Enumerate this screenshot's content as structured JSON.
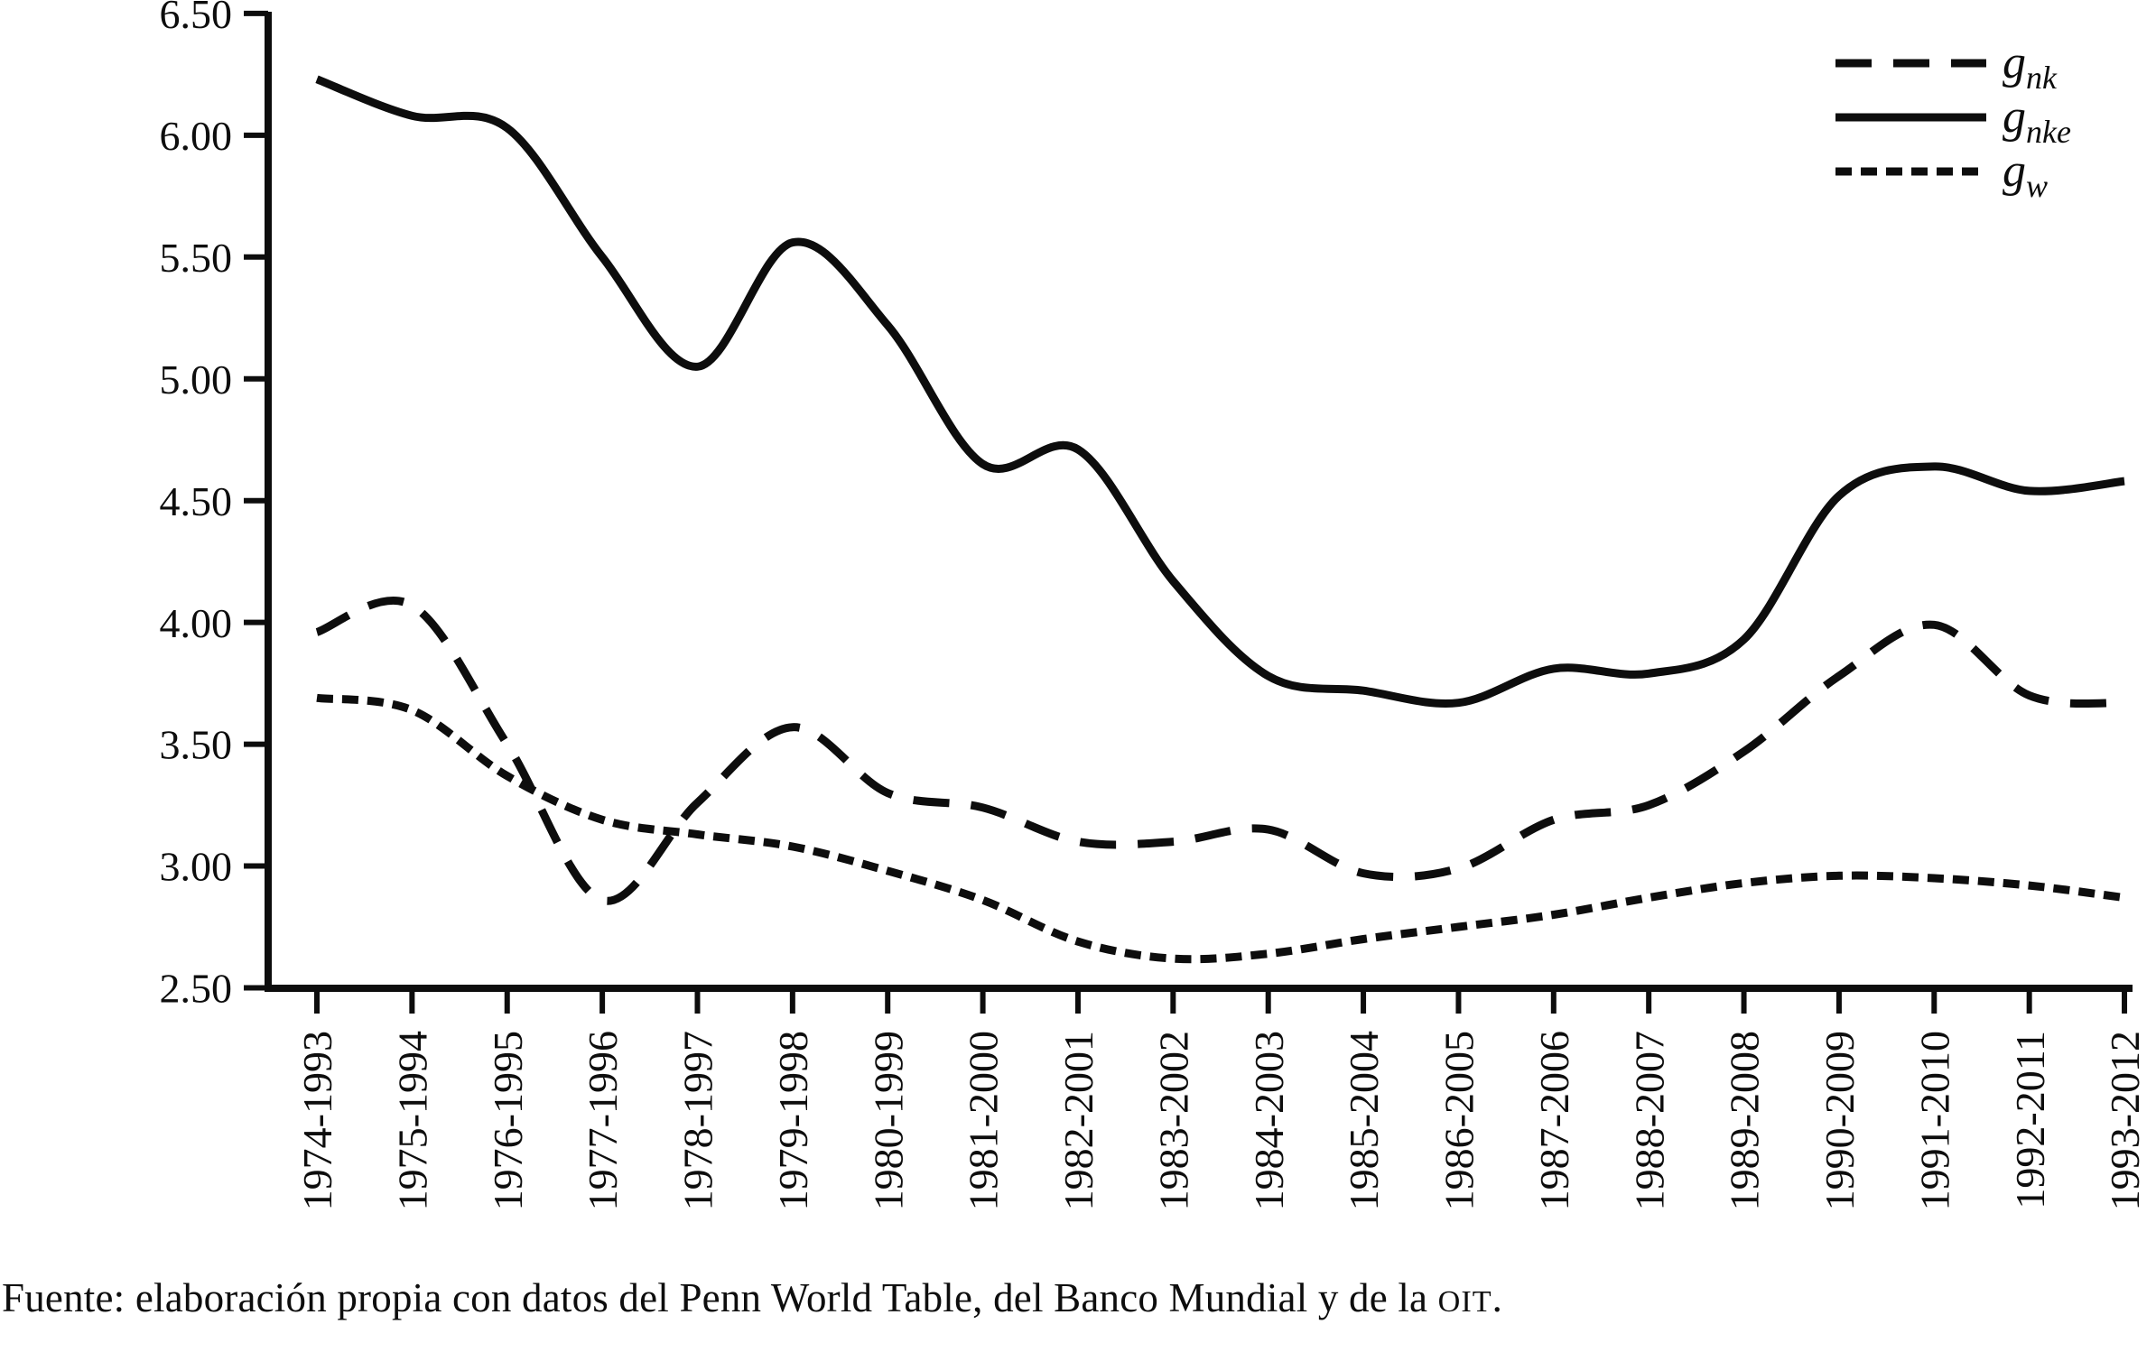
{
  "footer": {
    "prefix": "Fuente: elaboración propia con datos del Penn World Table, del Banco Mundial y de la ",
    "acronym": "OIT",
    "suffix": "."
  },
  "chart_data": {
    "type": "line",
    "title": "",
    "xlabel": "",
    "ylabel": "",
    "ylim": [
      2.5,
      6.5
    ],
    "ytick_step": 0.5,
    "ytick_labels": [
      "2.50",
      "3.00",
      "3.50",
      "4.00",
      "4.50",
      "5.00",
      "5.50",
      "6.00",
      "6.50"
    ],
    "grid": false,
    "legend_position": "top-right",
    "line_color": "#0d0d0d",
    "categories": [
      "1974-1993",
      "1975-1994",
      "1976-1995",
      "1977-1996",
      "1978-1997",
      "1979-1998",
      "1980-1999",
      "1981-2000",
      "1982-2001",
      "1983-2002",
      "1984-2003",
      "1985-2004",
      "1986-2005",
      "1987-2006",
      "1988-2007",
      "1989-2008",
      "1990-2009",
      "1991-2010",
      "1992-2011",
      "1993-2012"
    ],
    "series": [
      {
        "name": "g_nk",
        "label_main": "g",
        "label_sub": "nk",
        "style": "long-dash",
        "values": [
          3.96,
          4.07,
          3.5,
          2.86,
          3.26,
          3.57,
          3.3,
          3.24,
          3.1,
          3.1,
          3.15,
          2.97,
          2.99,
          3.19,
          3.25,
          3.47,
          3.78,
          3.99,
          3.7,
          3.67
        ]
      },
      {
        "name": "g_nke",
        "label_main": "g",
        "label_sub": "nke",
        "style": "solid",
        "values": [
          6.23,
          6.08,
          6.03,
          5.5,
          5.05,
          5.56,
          5.22,
          4.65,
          4.71,
          4.17,
          3.78,
          3.72,
          3.67,
          3.81,
          3.79,
          3.93,
          4.52,
          4.64,
          4.54,
          4.58
        ]
      },
      {
        "name": "g_w",
        "label_main": "g",
        "label_sub": "w",
        "style": "short-dash",
        "values": [
          3.69,
          3.64,
          3.37,
          3.19,
          3.13,
          3.08,
          2.98,
          2.86,
          2.69,
          2.62,
          2.64,
          2.7,
          2.75,
          2.8,
          2.87,
          2.93,
          2.96,
          2.95,
          2.92,
          2.87
        ]
      }
    ]
  }
}
